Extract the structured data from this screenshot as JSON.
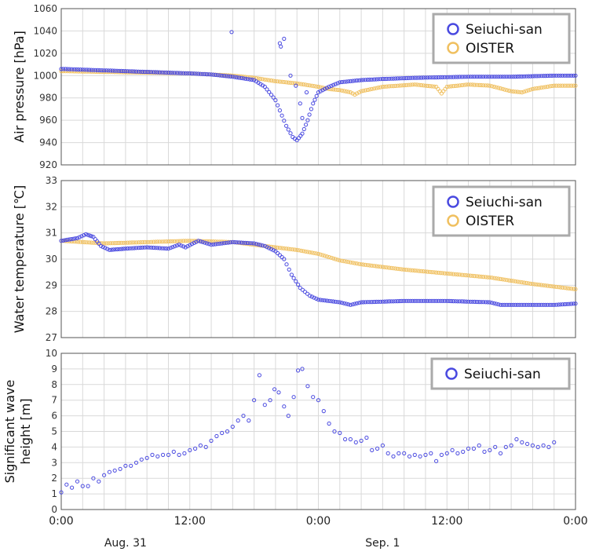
{
  "colors": {
    "seiuchi": "#4a4ae0",
    "oister": "#f0c060",
    "grid": "#d9d9d9",
    "frame": "#555555"
  },
  "chart_data": [
    {
      "type": "scatter",
      "ylabel": "Air pressure [hPa]",
      "ylim": [
        920,
        1060
      ],
      "yticks": [
        920,
        940,
        960,
        980,
        1000,
        1020,
        1040,
        1060
      ],
      "xlim": [
        0,
        48
      ],
      "legend": "top-right",
      "legend_entries": [
        "Seiuchi-san",
        "OISTER"
      ],
      "series": [
        {
          "name": "Seiuchi-san",
          "dense": [
            [
              0,
              1006
            ],
            [
              6,
              1004
            ],
            [
              12,
              1002
            ],
            [
              14,
              1001
            ],
            [
              16,
              999
            ],
            [
              18,
              996
            ],
            [
              19,
              990
            ],
            [
              20,
              978
            ],
            [
              21,
              955
            ],
            [
              21.6,
              945
            ],
            [
              22,
              942
            ],
            [
              22.5,
              948
            ],
            [
              23,
              960
            ],
            [
              23.5,
              975
            ],
            [
              24,
              985
            ],
            [
              25,
              990
            ],
            [
              26,
              994
            ],
            [
              28,
              996
            ],
            [
              30,
              997
            ],
            [
              33,
              998
            ],
            [
              38,
              999
            ],
            [
              42,
              999
            ],
            [
              46,
              1000
            ],
            [
              48,
              1000
            ]
          ],
          "extra": [
            [
              15.9,
              1039
            ],
            [
              20.4,
              1029
            ],
            [
              20.5,
              1026
            ],
            [
              20.8,
              1033
            ],
            [
              21.4,
              1000
            ],
            [
              21.9,
              991
            ],
            [
              22.5,
              962
            ],
            [
              22.9,
              985
            ],
            [
              22.3,
              975
            ]
          ]
        },
        {
          "name": "OISTER",
          "dense": [
            [
              0,
              1004
            ],
            [
              6,
              1003
            ],
            [
              12,
              1002
            ],
            [
              16,
              1000
            ],
            [
              18,
              998
            ],
            [
              20,
              995
            ],
            [
              22,
              993
            ],
            [
              24,
              990
            ],
            [
              25,
              988
            ],
            [
              26,
              987
            ],
            [
              27,
              985
            ],
            [
              27.4,
              983
            ],
            [
              28,
              986
            ],
            [
              30,
              990
            ],
            [
              33,
              992
            ],
            [
              35,
              990
            ],
            [
              35.5,
              984
            ],
            [
              36,
              990
            ],
            [
              38,
              992
            ],
            [
              40,
              991
            ],
            [
              42,
              986
            ],
            [
              43,
              985
            ],
            [
              44,
              988
            ],
            [
              46,
              991
            ],
            [
              48,
              991
            ]
          ],
          "extra": []
        }
      ]
    },
    {
      "type": "scatter",
      "ylabel": "Water temperature [℃]",
      "ylim": [
        27,
        33
      ],
      "yticks": [
        27,
        28,
        29,
        30,
        31,
        32,
        33
      ],
      "xlim": [
        0,
        48
      ],
      "legend": "top-right",
      "legend_entries": [
        "Seiuchi-san",
        "OISTER"
      ],
      "series": [
        {
          "name": "Seiuchi-san",
          "dense": [
            [
              0,
              30.7
            ],
            [
              1.5,
              30.8
            ],
            [
              2.3,
              30.95
            ],
            [
              3,
              30.85
            ],
            [
              3.7,
              30.5
            ],
            [
              4.5,
              30.35
            ],
            [
              6,
              30.4
            ],
            [
              8,
              30.45
            ],
            [
              10,
              30.4
            ],
            [
              11,
              30.55
            ],
            [
              11.6,
              30.45
            ],
            [
              12.8,
              30.7
            ],
            [
              14,
              30.55
            ],
            [
              16,
              30.65
            ],
            [
              18,
              30.6
            ],
            [
              19,
              30.5
            ],
            [
              20,
              30.3
            ],
            [
              20.8,
              30.0
            ],
            [
              21.5,
              29.4
            ],
            [
              22.3,
              28.9
            ],
            [
              23.2,
              28.6
            ],
            [
              24,
              28.45
            ],
            [
              26,
              28.35
            ],
            [
              27,
              28.25
            ],
            [
              28,
              28.35
            ],
            [
              32,
              28.4
            ],
            [
              36,
              28.4
            ],
            [
              40,
              28.35
            ],
            [
              41,
              28.25
            ],
            [
              44,
              28.25
            ],
            [
              46,
              28.25
            ],
            [
              48,
              28.3
            ]
          ],
          "extra": []
        },
        {
          "name": "OISTER",
          "dense": [
            [
              0,
              30.7
            ],
            [
              4,
              30.6
            ],
            [
              8,
              30.65
            ],
            [
              12,
              30.7
            ],
            [
              16,
              30.65
            ],
            [
              18,
              30.55
            ],
            [
              20,
              30.45
            ],
            [
              22,
              30.35
            ],
            [
              24,
              30.2
            ],
            [
              26,
              29.95
            ],
            [
              28,
              29.8
            ],
            [
              30,
              29.7
            ],
            [
              32,
              29.6
            ],
            [
              36,
              29.45
            ],
            [
              40,
              29.3
            ],
            [
              44,
              29.05
            ],
            [
              48,
              28.85
            ]
          ],
          "extra": []
        }
      ]
    },
    {
      "type": "scatter",
      "ylabel": "Significant wave height [m]",
      "ylabel_lines": [
        "Significant wave",
        "height [m]"
      ],
      "ylim": [
        0,
        10
      ],
      "yticks": [
        0,
        1,
        2,
        3,
        4,
        5,
        6,
        7,
        8,
        9,
        10
      ],
      "xlim": [
        0,
        48
      ],
      "legend": "top-right",
      "legend_entries": [
        "Seiuchi-san"
      ],
      "series": [
        {
          "name": "Seiuchi-san",
          "dense": [],
          "extra": [
            [
              0,
              1.1
            ],
            [
              0.5,
              1.6
            ],
            [
              1,
              1.4
            ],
            [
              1.5,
              1.8
            ],
            [
              2,
              1.5
            ],
            [
              2.5,
              1.5
            ],
            [
              3,
              2.0
            ],
            [
              3.5,
              1.8
            ],
            [
              4,
              2.2
            ],
            [
              4.5,
              2.4
            ],
            [
              5,
              2.5
            ],
            [
              5.5,
              2.6
            ],
            [
              6,
              2.8
            ],
            [
              6.5,
              2.8
            ],
            [
              7,
              3.0
            ],
            [
              7.5,
              3.2
            ],
            [
              8,
              3.3
            ],
            [
              8.5,
              3.5
            ],
            [
              9,
              3.4
            ],
            [
              9.5,
              3.5
            ],
            [
              10,
              3.5
            ],
            [
              10.5,
              3.7
            ],
            [
              11,
              3.5
            ],
            [
              11.5,
              3.6
            ],
            [
              12,
              3.8
            ],
            [
              12.5,
              3.9
            ],
            [
              13,
              4.1
            ],
            [
              13.5,
              4.0
            ],
            [
              14,
              4.4
            ],
            [
              14.5,
              4.7
            ],
            [
              15,
              4.9
            ],
            [
              15.5,
              5.0
            ],
            [
              16,
              5.3
            ],
            [
              16.5,
              5.7
            ],
            [
              17,
              6.0
            ],
            [
              17.5,
              5.7
            ],
            [
              18,
              7.0
            ],
            [
              18.5,
              8.6
            ],
            [
              19,
              6.7
            ],
            [
              19.5,
              7.0
            ],
            [
              19.9,
              7.7
            ],
            [
              20.3,
              7.5
            ],
            [
              20.8,
              6.6
            ],
            [
              21.2,
              6.0
            ],
            [
              21.7,
              7.2
            ],
            [
              22.1,
              8.9
            ],
            [
              22.5,
              9.0
            ],
            [
              23,
              7.9
            ],
            [
              23.5,
              7.2
            ],
            [
              24,
              7.0
            ],
            [
              24.5,
              6.3
            ],
            [
              25,
              5.5
            ],
            [
              25.5,
              5.0
            ],
            [
              26,
              4.9
            ],
            [
              26.5,
              4.5
            ],
            [
              27,
              4.5
            ],
            [
              27.5,
              4.3
            ],
            [
              28,
              4.4
            ],
            [
              28.5,
              4.6
            ],
            [
              29,
              3.8
            ],
            [
              29.5,
              3.9
            ],
            [
              30,
              4.1
            ],
            [
              30.5,
              3.6
            ],
            [
              31,
              3.4
            ],
            [
              31.5,
              3.6
            ],
            [
              32,
              3.6
            ],
            [
              32.5,
              3.4
            ],
            [
              33,
              3.5
            ],
            [
              33.5,
              3.4
            ],
            [
              34,
              3.5
            ],
            [
              34.5,
              3.6
            ],
            [
              35,
              3.1
            ],
            [
              35.5,
              3.5
            ],
            [
              36,
              3.6
            ],
            [
              36.5,
              3.8
            ],
            [
              37,
              3.6
            ],
            [
              37.5,
              3.7
            ],
            [
              38,
              3.9
            ],
            [
              38.5,
              3.9
            ],
            [
              39,
              4.1
            ],
            [
              39.5,
              3.7
            ],
            [
              40,
              3.8
            ],
            [
              40.5,
              4.0
            ],
            [
              41,
              3.6
            ],
            [
              41.5,
              4.0
            ],
            [
              42,
              4.1
            ],
            [
              42.5,
              4.5
            ],
            [
              43,
              4.3
            ],
            [
              43.5,
              4.2
            ],
            [
              44,
              4.1
            ],
            [
              44.5,
              4.0
            ],
            [
              45,
              4.1
            ],
            [
              45.5,
              4.0
            ],
            [
              46,
              4.3
            ]
          ]
        }
      ]
    }
  ],
  "x_axis": {
    "tick_labels": [
      "0:00",
      "12:00",
      "0:00",
      "12:00",
      "0:00"
    ],
    "tick_values": [
      0,
      12,
      24,
      36,
      48
    ],
    "date_labels": [
      {
        "label": "Aug. 31",
        "at": 6
      },
      {
        "label": "Sep. 1",
        "at": 30
      }
    ]
  }
}
